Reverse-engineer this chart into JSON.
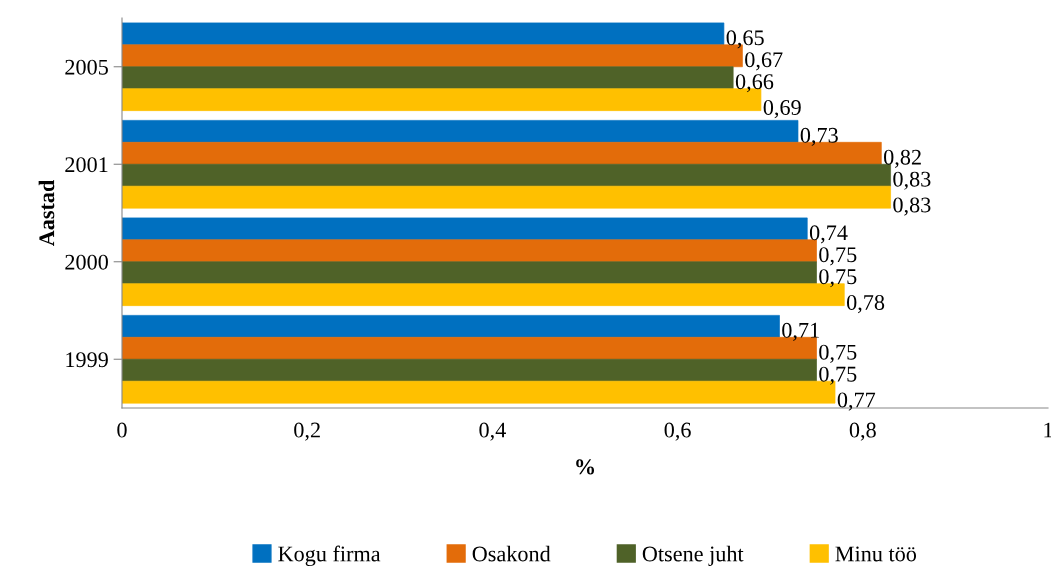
{
  "chart_data": {
    "type": "bar",
    "orientation": "horizontal",
    "xlabel": "%",
    "ylabel": "Aastad",
    "categories": [
      "2005",
      "2001",
      "2000",
      "1999"
    ],
    "series": [
      {
        "name": "Kogu firma",
        "color": "#0070c0",
        "values": [
          0.65,
          0.73,
          0.74,
          0.71
        ],
        "value_labels": [
          "0,65",
          "0,73",
          "0,74",
          "0,71"
        ]
      },
      {
        "name": "Osakond",
        "color": "#e36c0a",
        "values": [
          0.67,
          0.82,
          0.75,
          0.75
        ],
        "value_labels": [
          "0,67",
          "0,82",
          "0,75",
          "0,75"
        ]
      },
      {
        "name": "Otsene juht",
        "color": "#4f6228",
        "values": [
          0.66,
          0.83,
          0.75,
          0.75
        ],
        "value_labels": [
          "0,66",
          "0,83",
          "0,75",
          "0,75"
        ]
      },
      {
        "name": "Minu töö",
        "color": "#ffc000",
        "values": [
          0.69,
          0.83,
          0.78,
          0.77
        ],
        "value_labels": [
          "0,69",
          "0,83",
          "0,78",
          "0,77"
        ]
      }
    ],
    "xlim": [
      0,
      1
    ],
    "xticks": [
      0,
      {
        "value": 0.2,
        "label": "0,2"
      },
      {
        "value": 0.4,
        "label": "0,4"
      },
      {
        "value": 0.6,
        "label": "0,6"
      },
      {
        "value": 0.8,
        "label": "0,8"
      },
      1
    ],
    "grid": false,
    "legend": "bottom"
  }
}
